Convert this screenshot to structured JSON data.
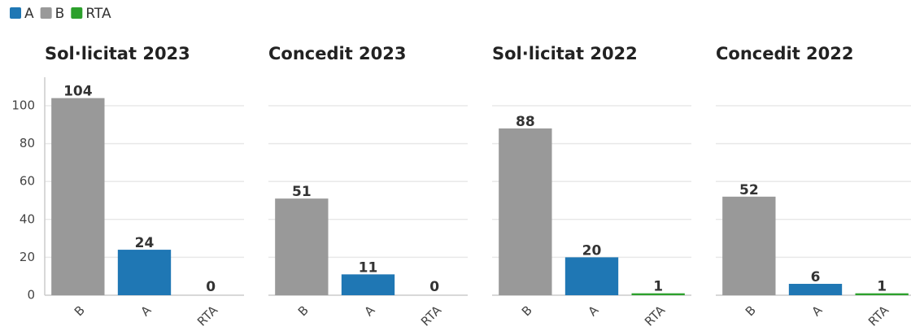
{
  "legend": [
    {
      "name": "A",
      "color": "#1f77b4"
    },
    {
      "name": "B",
      "color": "#999999"
    },
    {
      "name": "RTA",
      "color": "#2ca02c"
    }
  ],
  "y_axis": {
    "ylim": [
      0,
      115
    ],
    "yticks": [
      0,
      20,
      40,
      60,
      80,
      100
    ]
  },
  "chart_data": [
    {
      "type": "bar",
      "title": "Sol·licitat 2023",
      "categories": [
        "B",
        "A",
        "RTA"
      ],
      "values": [
        104,
        24,
        0
      ]
    },
    {
      "type": "bar",
      "title": "Concedit 2023",
      "categories": [
        "B",
        "A",
        "RTA"
      ],
      "values": [
        51,
        11,
        0
      ]
    },
    {
      "type": "bar",
      "title": "Sol·licitat 2022",
      "categories": [
        "B",
        "A",
        "RTA"
      ],
      "values": [
        88,
        20,
        1
      ]
    },
    {
      "type": "bar",
      "title": "Concedit 2022",
      "categories": [
        "B",
        "A",
        "RTA"
      ],
      "values": [
        52,
        6,
        1
      ]
    }
  ]
}
